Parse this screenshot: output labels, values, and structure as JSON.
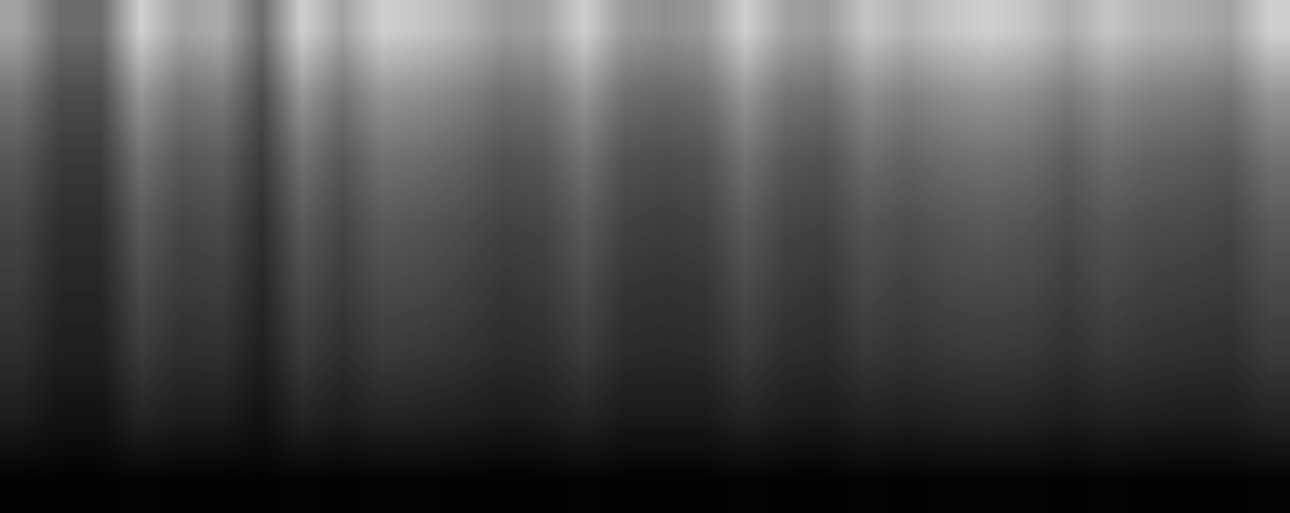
{
  "chart_data": {
    "type": "heatmap",
    "color": "gray",
    "tick_labels": false,
    "value_range": [
      0,
      100
    ],
    "cells": [
      [
        63,
        42,
        42,
        81,
        63,
        67,
        42,
        81,
        63,
        81,
        77,
        70,
        60,
        63,
        81,
        60,
        56,
        60,
        81,
        63,
        60,
        77,
        70,
        77,
        81,
        77,
        67,
        77,
        70,
        67,
        63,
        81
      ],
      [
        45,
        30,
        30,
        58,
        45,
        48,
        30,
        58,
        45,
        58,
        55,
        50,
        43,
        45,
        58,
        43,
        40,
        43,
        58,
        45,
        43,
        55,
        50,
        55,
        58,
        55,
        48,
        55,
        50,
        48,
        45,
        58
      ],
      [
        34,
        23,
        23,
        44,
        34,
        36,
        23,
        44,
        34,
        44,
        42,
        38,
        32,
        34,
        44,
        32,
        30,
        32,
        44,
        34,
        32,
        42,
        38,
        42,
        44,
        42,
        36,
        42,
        38,
        36,
        34,
        44
      ],
      [
        27,
        18,
        18,
        35,
        27,
        29,
        18,
        35,
        27,
        35,
        33,
        30,
        26,
        27,
        35,
        26,
        24,
        26,
        35,
        27,
        26,
        33,
        30,
        33,
        35,
        33,
        29,
        33,
        30,
        29,
        27,
        35
      ],
      [
        23,
        15,
        15,
        29,
        23,
        24,
        15,
        29,
        23,
        29,
        28,
        25,
        21,
        23,
        29,
        21,
        20,
        21,
        29,
        23,
        21,
        28,
        25,
        28,
        29,
        28,
        24,
        28,
        25,
        24,
        23,
        29
      ],
      [
        18,
        12,
        12,
        23,
        18,
        19,
        12,
        23,
        18,
        23,
        22,
        20,
        17,
        18,
        23,
        17,
        16,
        17,
        23,
        18,
        17,
        22,
        20,
        22,
        23,
        22,
        19,
        22,
        20,
        19,
        18,
        23
      ],
      [
        11,
        7,
        7,
        14,
        11,
        11,
        7,
        14,
        11,
        14,
        13,
        12,
        10,
        11,
        14,
        10,
        10,
        10,
        14,
        11,
        10,
        13,
        12,
        13,
        14,
        13,
        11,
        13,
        12,
        11,
        11,
        14
      ],
      [
        1,
        1,
        1,
        2,
        1,
        1,
        1,
        2,
        1,
        2,
        2,
        1,
        1,
        1,
        2,
        1,
        1,
        1,
        2,
        1,
        1,
        2,
        1,
        2,
        2,
        2,
        1,
        2,
        1,
        1,
        1,
        2
      ]
    ]
  }
}
